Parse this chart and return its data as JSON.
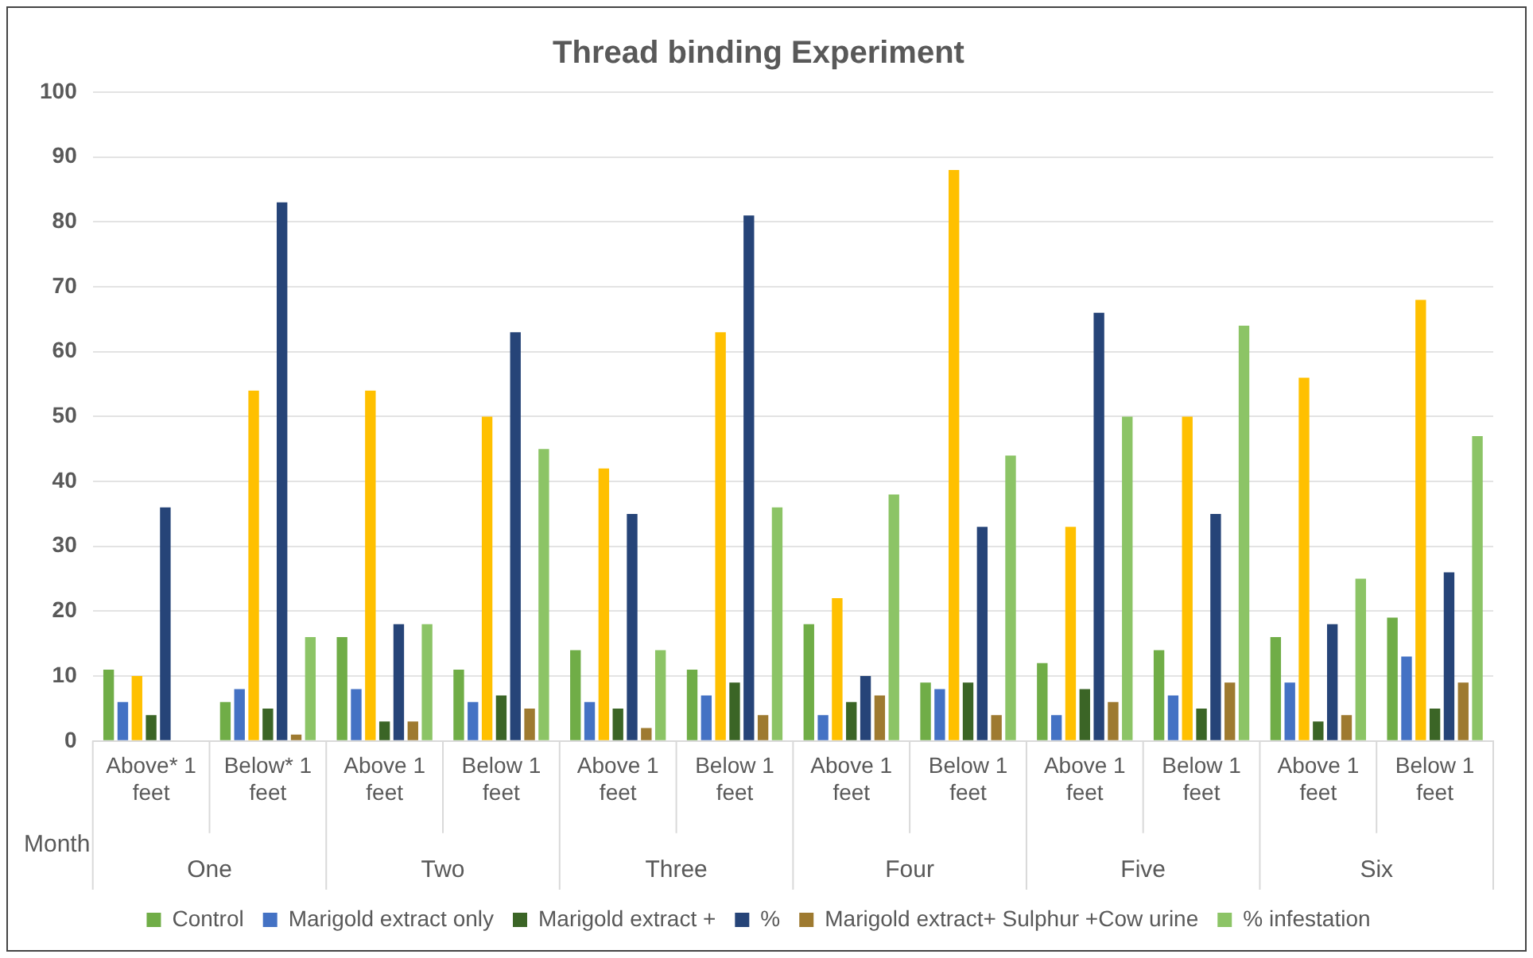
{
  "chart_data": {
    "type": "bar",
    "title": "Thread binding Experiment",
    "xlabel": "Month",
    "categories": [
      "Above* 1 feet",
      "Below* 1 feet",
      "Above 1 feet",
      "Below 1 feet",
      "Above 1 feet",
      "Below 1 feet",
      "Above 1 feet",
      "Below 1 feet",
      "Above 1 feet",
      "Below 1 feet",
      "Above 1 feet",
      "Below 1 feet"
    ],
    "annotations": [
      "One",
      "Two",
      "Three",
      "Four",
      "Five",
      "Six"
    ],
    "series": [
      {
        "name": "Control",
        "color": "#70ad47",
        "values": [
          11,
          6,
          16,
          11,
          14,
          11,
          18,
          9,
          12,
          14,
          16,
          19
        ]
      },
      {
        "name": "Marigold extract only",
        "color": "#4472c4",
        "values": [
          6,
          8,
          8,
          6,
          6,
          7,
          4,
          8,
          4,
          7,
          9,
          13
        ]
      },
      {
        "color": "#ffc000",
        "values": [
          10,
          54,
          54,
          50,
          42,
          63,
          22,
          88,
          33,
          50,
          56,
          68
        ]
      },
      {
        "name": "Marigold extract +",
        "color": "#3b6526",
        "values": [
          4,
          5,
          3,
          7,
          5,
          9,
          6,
          9,
          8,
          5,
          3,
          5
        ]
      },
      {
        "name": "%",
        "color": "#264478",
        "values": [
          36,
          83,
          18,
          63,
          35,
          81,
          10,
          33,
          66,
          35,
          18,
          26
        ]
      },
      {
        "name": "Marigold extract+ Sulphur +Cow urine",
        "color": "#9e7a30",
        "values": [
          0,
          1,
          3,
          5,
          2,
          4,
          7,
          4,
          6,
          9,
          4,
          9
        ]
      },
      {
        "name": "% infestation",
        "color": "#8cc466",
        "values": [
          0,
          16,
          18,
          45,
          14,
          36,
          38,
          44,
          50,
          64,
          25,
          47
        ]
      }
    ],
    "ylim": [
      0,
      100
    ],
    "yticks": [
      0,
      10,
      20,
      30,
      40,
      50,
      60,
      70,
      80,
      90,
      100
    ],
    "grid": "y",
    "legend": "bottom"
  }
}
